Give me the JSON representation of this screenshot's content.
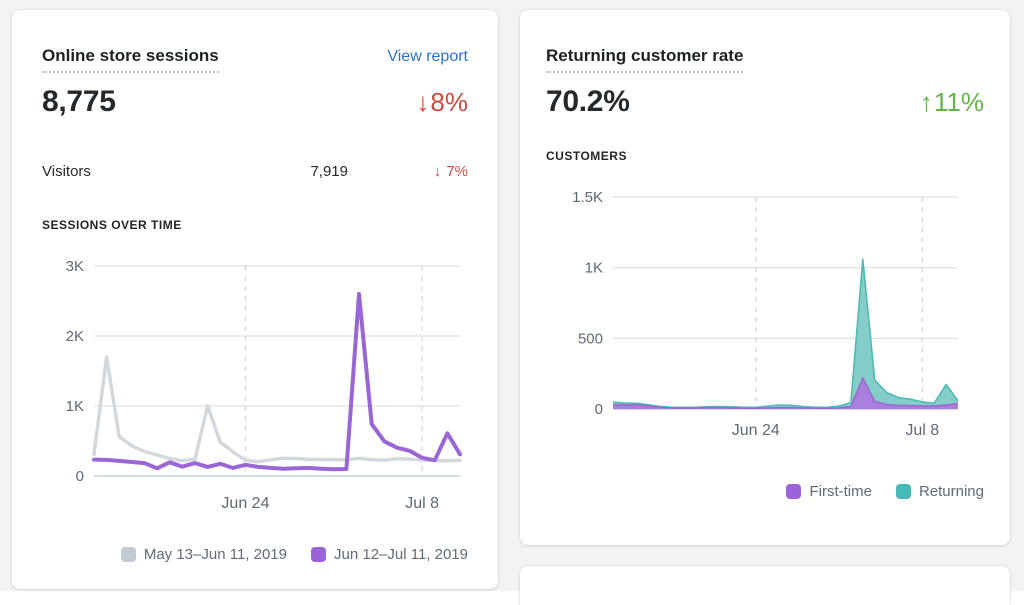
{
  "page": {
    "background_color": "#f2f3f5",
    "card_background": "#ffffff"
  },
  "colors": {
    "negative_delta": "#cd4a3d",
    "positive_delta": "#65b546",
    "link_blue": "#2e72c8",
    "heading_text": "#1d2226",
    "axis_text": "#5d6975",
    "legend_text": "#5f6b77",
    "purple_line": "#9a66d6",
    "gray_line": "#d3d8dd",
    "teal": "#47c1bf"
  },
  "cards": {
    "sessions": {
      "title": "Online store sessions",
      "view_report_label": "View report",
      "value": "8,775",
      "delta_arrow": "↓",
      "delta": "8%",
      "delta_direction": "down",
      "secondary": {
        "label": "Visitors",
        "value": "7,919",
        "delta_arrow": "↓",
        "delta": "7%",
        "delta_direction": "down"
      }
    },
    "returning": {
      "title": "Returning customer rate",
      "value": "70.2%",
      "delta_arrow": "↑",
      "delta": "11%",
      "delta_direction": "up"
    }
  },
  "chart_data": [
    {
      "id": "sessions-over-time",
      "type": "line",
      "title": "SESSIONS OVER TIME",
      "xlabel": "",
      "ylabel": "",
      "ylim": [
        0,
        3000
      ],
      "grid": {
        "horizontal": true,
        "vertical_dashed": true,
        "h_color": "#e4e5e7",
        "v_color": "#d8dadd",
        "baseline_color": "#c6cede"
      },
      "y_ticks": [
        {
          "label": "0",
          "value": 0
        },
        {
          "label": "1K",
          "value": 1000
        },
        {
          "label": "2K",
          "value": 2000
        },
        {
          "label": "3K",
          "value": 3000
        }
      ],
      "x_ticks": [
        {
          "label": "Jun 24",
          "index": 12
        },
        {
          "label": "Jul 8",
          "index": 26
        }
      ],
      "legend_position": "bottom-right",
      "series": [
        {
          "name": "May 13–Jun 11, 2019",
          "color": "#d3d8dd",
          "swatch": "#c2cbd3",
          "line_width": 3.5,
          "values": [
            310,
            1700,
            560,
            430,
            350,
            300,
            250,
            220,
            240,
            1000,
            485,
            345,
            225,
            205,
            230,
            255,
            250,
            240,
            235,
            235,
            230,
            255,
            235,
            225,
            250,
            240,
            230,
            220,
            215,
            225
          ]
        },
        {
          "name": "Jun 12–Jul 11, 2019",
          "color": "#9a66d6",
          "swatch": "#9c63d8",
          "line_width": 4,
          "values": [
            235,
            230,
            215,
            200,
            185,
            110,
            195,
            135,
            185,
            130,
            175,
            115,
            160,
            130,
            115,
            105,
            110,
            115,
            105,
            95,
            100,
            2600,
            740,
            495,
            405,
            360,
            260,
            225,
            610,
            310
          ]
        }
      ]
    },
    {
      "id": "customers",
      "type": "stacked-area",
      "title": "CUSTOMERS",
      "xlabel": "",
      "ylabel": "",
      "ylim": [
        0,
        1500
      ],
      "grid": {
        "horizontal": true,
        "vertical_dashed": true,
        "h_color": "#e4e5e7",
        "v_color": "#d8dadd",
        "baseline_color": "#c6cede"
      },
      "y_ticks": [
        {
          "label": "0",
          "value": 0
        },
        {
          "label": "500",
          "value": 500
        },
        {
          "label": "1K",
          "value": 1000
        },
        {
          "label": "1.5K",
          "value": 1500
        }
      ],
      "x_ticks": [
        {
          "label": "Jun 24",
          "index": 12
        },
        {
          "label": "Jul 8",
          "index": 26
        }
      ],
      "legend_position": "bottom-right",
      "series": [
        {
          "name": "First-time",
          "fill": "#a97edc",
          "stroke": "#9b63d6",
          "swatch": "#9c63d8",
          "values": [
            30,
            28,
            30,
            22,
            12,
            8,
            8,
            8,
            10,
            10,
            8,
            6,
            6,
            8,
            10,
            10,
            8,
            6,
            6,
            8,
            18,
            220,
            55,
            32,
            26,
            24,
            22,
            22,
            28,
            38
          ]
        },
        {
          "name": "Returning",
          "fill": "#85cdc8",
          "stroke": "#4ebab4",
          "swatch": "#47b8b5",
          "values": [
            18,
            14,
            10,
            8,
            6,
            4,
            4,
            4,
            6,
            8,
            8,
            6,
            6,
            12,
            18,
            16,
            10,
            6,
            6,
            12,
            28,
            840,
            150,
            85,
            55,
            45,
            28,
            18,
            145,
            20
          ]
        }
      ]
    }
  ]
}
